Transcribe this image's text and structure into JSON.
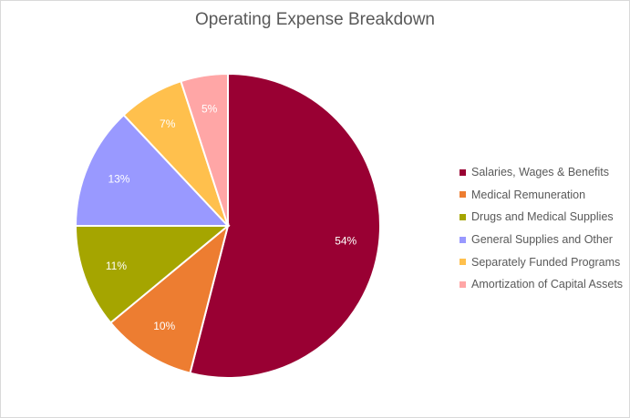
{
  "chart_data": {
    "type": "pie",
    "title": "Operating Expense Breakdown",
    "legend_position": "right",
    "slices": [
      {
        "name": "Salaries, Wages & Benefits",
        "value": 54,
        "label": "54%",
        "color": "#990033"
      },
      {
        "name": "Medical Remuneration",
        "value": 10,
        "label": "10%",
        "color": "#ED7D31"
      },
      {
        "name": "Drugs and Medical Supplies",
        "value": 11,
        "label": "11%",
        "color": "#A5A500"
      },
      {
        "name": "General Supplies and Other",
        "value": 13,
        "label": "13%",
        "color": "#9999FF"
      },
      {
        "name": "Separately Funded Programs",
        "value": 7,
        "label": "7%",
        "color": "#FFC04D"
      },
      {
        "name": "Amortization of Capital Assets",
        "value": 5,
        "label": "5%",
        "color": "#FFA6A6"
      }
    ]
  }
}
